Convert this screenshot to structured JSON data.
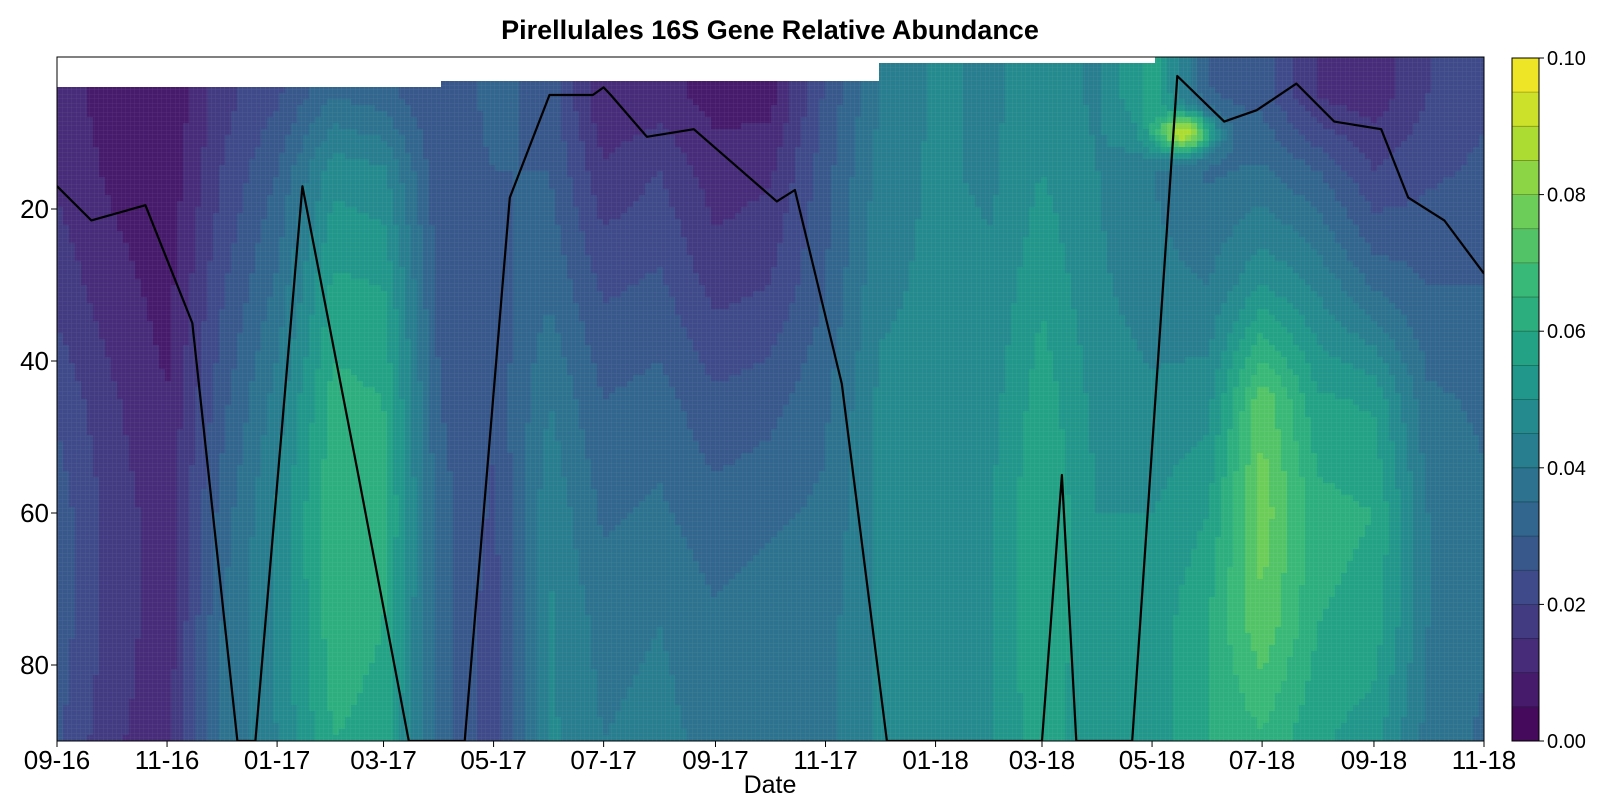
{
  "chart_data": {
    "type": "heatmap",
    "title": "Pirellulales 16S Gene Relative Abundance",
    "xlabel": "Date",
    "ylabel": "",
    "x_ticks": [
      {
        "date": "2016-09-01",
        "label": "09-16"
      },
      {
        "date": "2016-11-01",
        "label": "11-16"
      },
      {
        "date": "2017-01-01",
        "label": "01-17"
      },
      {
        "date": "2017-03-01",
        "label": "03-17"
      },
      {
        "date": "2017-05-01",
        "label": "05-17"
      },
      {
        "date": "2017-07-01",
        "label": "07-17"
      },
      {
        "date": "2017-09-01",
        "label": "09-17"
      },
      {
        "date": "2017-11-01",
        "label": "11-17"
      },
      {
        "date": "2018-01-01",
        "label": "01-18"
      },
      {
        "date": "2018-03-01",
        "label": "03-18"
      },
      {
        "date": "2018-05-01",
        "label": "05-18"
      },
      {
        "date": "2018-07-01",
        "label": "07-18"
      },
      {
        "date": "2018-09-01",
        "label": "09-18"
      },
      {
        "date": "2018-11-01",
        "label": "11-18"
      }
    ],
    "xlim": [
      "2016-09-01",
      "2018-11-01"
    ],
    "y_ticks": [
      20,
      40,
      60,
      80
    ],
    "ylim": [
      0,
      90
    ],
    "y_inverted": true,
    "colorbar": {
      "min": 0.0,
      "max": 0.1,
      "levels": 20,
      "ticks": [
        "0.00",
        "0.02",
        "0.04",
        "0.06",
        "0.08",
        "0.10"
      ],
      "colormap": "viridis"
    },
    "colormap_stops": [
      "#440154",
      "#482878",
      "#3e4989",
      "#31688e",
      "#26828e",
      "#1f9e89",
      "#35b779",
      "#6ece58",
      "#b5de2b",
      "#fde725"
    ],
    "profiles": [
      {
        "date": "2016-09-01",
        "top": 4,
        "values": [
          0.012,
          0.014,
          0.018,
          0.024,
          0.028,
          0.028,
          0.026
        ]
      },
      {
        "date": "2016-10-01",
        "top": 4,
        "values": [
          0.008,
          0.009,
          0.012,
          0.016,
          0.018,
          0.018,
          0.016
        ]
      },
      {
        "date": "2016-11-01",
        "top": 4,
        "values": [
          0.005,
          0.006,
          0.008,
          0.01,
          0.012,
          0.012,
          0.012
        ]
      },
      {
        "date": "2016-12-01",
        "top": 4,
        "values": [
          0.018,
          0.02,
          0.024,
          0.028,
          0.032,
          0.035,
          0.036
        ]
      },
      {
        "date": "2017-01-01",
        "top": 4,
        "values": [
          0.024,
          0.03,
          0.036,
          0.042,
          0.046,
          0.046,
          0.045
        ]
      },
      {
        "date": "2017-02-01",
        "top": 4,
        "values": [
          0.035,
          0.048,
          0.056,
          0.062,
          0.064,
          0.063,
          0.06
        ]
      },
      {
        "date": "2017-03-01",
        "top": 4,
        "values": [
          0.032,
          0.046,
          0.055,
          0.06,
          0.062,
          0.06,
          0.058
        ]
      },
      {
        "date": "2017-04-01",
        "top": 3,
        "values": [
          0.025,
          0.026,
          0.028,
          0.03,
          0.032,
          0.032,
          0.032
        ]
      },
      {
        "date": "2017-05-01",
        "top": 3,
        "values": [
          0.032,
          0.03,
          0.028,
          0.026,
          0.024,
          0.022,
          0.022
        ]
      },
      {
        "date": "2017-06-01",
        "top": 3,
        "values": [
          0.028,
          0.03,
          0.034,
          0.04,
          0.044,
          0.046,
          0.046
        ]
      },
      {
        "date": "2017-07-01",
        "top": 3,
        "values": [
          0.01,
          0.016,
          0.024,
          0.03,
          0.034,
          0.038,
          0.04
        ]
      },
      {
        "date": "2017-08-01",
        "top": 3,
        "values": [
          0.012,
          0.02,
          0.026,
          0.032,
          0.036,
          0.04,
          0.042
        ]
      },
      {
        "date": "2017-09-01",
        "top": 3,
        "values": [
          0.008,
          0.012,
          0.018,
          0.026,
          0.032,
          0.036,
          0.038
        ]
      },
      {
        "date": "2017-10-01",
        "top": 3,
        "values": [
          0.008,
          0.014,
          0.02,
          0.028,
          0.034,
          0.038,
          0.04
        ]
      },
      {
        "date": "2017-11-01",
        "top": 3,
        "values": [
          0.026,
          0.028,
          0.03,
          0.034,
          0.036,
          0.038,
          0.038
        ]
      },
      {
        "date": "2017-12-01",
        "top": 1,
        "values": [
          0.04,
          0.042,
          0.044,
          0.046,
          0.046,
          0.046,
          0.046
        ]
      },
      {
        "date": "2018-01-01",
        "top": 1,
        "values": [
          0.046,
          0.046,
          0.046,
          0.046,
          0.046,
          0.046,
          0.046
        ]
      },
      {
        "date": "2018-02-01",
        "top": 1,
        "values": [
          0.044,
          0.044,
          0.046,
          0.048,
          0.05,
          0.05,
          0.05
        ]
      },
      {
        "date": "2018-03-01",
        "top": 1,
        "values": [
          0.048,
          0.05,
          0.054,
          0.058,
          0.06,
          0.06,
          0.058
        ]
      },
      {
        "date": "2018-04-01",
        "top": 1,
        "values": [
          0.044,
          0.045,
          0.046,
          0.048,
          0.05,
          0.05,
          0.05
        ]
      },
      {
        "date": "2018-05-01",
        "top": 0,
        "values": [
          0.058,
          0.04,
          0.042,
          0.046,
          0.05,
          0.052,
          0.052
        ]
      },
      {
        "date": "2018-06-01",
        "top": 0,
        "values": [
          0.03,
          0.034,
          0.04,
          0.048,
          0.055,
          0.06,
          0.06
        ]
      },
      {
        "date": "2018-07-01",
        "top": 0,
        "values": [
          0.028,
          0.036,
          0.05,
          0.074,
          0.078,
          0.074,
          0.064
        ]
      },
      {
        "date": "2018-08-01",
        "top": 0,
        "values": [
          0.014,
          0.03,
          0.044,
          0.056,
          0.062,
          0.06,
          0.056
        ]
      },
      {
        "date": "2018-09-01",
        "top": 0,
        "values": [
          0.012,
          0.02,
          0.034,
          0.054,
          0.06,
          0.058,
          0.052
        ]
      },
      {
        "date": "2018-10-01",
        "top": 0,
        "values": [
          0.02,
          0.024,
          0.03,
          0.036,
          0.04,
          0.04,
          0.038
        ]
      },
      {
        "date": "2018-11-01",
        "top": 0,
        "values": [
          0.024,
          0.026,
          0.03,
          0.034,
          0.036,
          0.036,
          0.034
        ]
      }
    ],
    "profile_depths": [
      5,
      15,
      30,
      45,
      60,
      75,
      90
    ],
    "hotspot": {
      "date": "2018-05-20",
      "depth": 10,
      "value": 0.095
    },
    "line_series": {
      "color": "#000000",
      "points": [
        {
          "date": "2016-09-01",
          "depth": 17
        },
        {
          "date": "2016-09-20",
          "depth": 21.5
        },
        {
          "date": "2016-10-20",
          "depth": 19.5
        },
        {
          "date": "2016-11-15",
          "depth": 35
        },
        {
          "date": "2016-12-10",
          "depth": 90
        },
        {
          "date": "2016-12-20",
          "depth": 90
        },
        {
          "date": "2017-01-15",
          "depth": 17
        },
        {
          "date": "2017-02-15",
          "depth": 55
        },
        {
          "date": "2017-03-15",
          "depth": 90
        },
        {
          "date": "2017-04-15",
          "depth": 90
        },
        {
          "date": "2017-05-10",
          "depth": 18.5
        },
        {
          "date": "2017-06-01",
          "depth": 5
        },
        {
          "date": "2017-06-25",
          "depth": 5
        },
        {
          "date": "2017-07-01",
          "depth": 4
        },
        {
          "date": "2017-07-05",
          "depth": 5
        },
        {
          "date": "2017-07-25",
          "depth": 10.5
        },
        {
          "date": "2017-08-20",
          "depth": 9.5
        },
        {
          "date": "2017-10-05",
          "depth": 19
        },
        {
          "date": "2017-10-15",
          "depth": 17.5
        },
        {
          "date": "2017-11-10",
          "depth": 43
        },
        {
          "date": "2017-12-05",
          "depth": 90
        },
        {
          "date": "2018-03-01",
          "depth": 90
        },
        {
          "date": "2018-03-12",
          "depth": 55
        },
        {
          "date": "2018-03-20",
          "depth": 90
        },
        {
          "date": "2018-04-20",
          "depth": 90
        },
        {
          "date": "2018-05-15",
          "depth": 2.5
        },
        {
          "date": "2018-06-10",
          "depth": 8.5
        },
        {
          "date": "2018-06-28",
          "depth": 7
        },
        {
          "date": "2018-07-20",
          "depth": 3.5
        },
        {
          "date": "2018-08-10",
          "depth": 8.5
        },
        {
          "date": "2018-09-05",
          "depth": 9.5
        },
        {
          "date": "2018-09-20",
          "depth": 18.5
        },
        {
          "date": "2018-10-10",
          "depth": 21.5
        },
        {
          "date": "2018-11-01",
          "depth": 28.5
        }
      ]
    }
  }
}
